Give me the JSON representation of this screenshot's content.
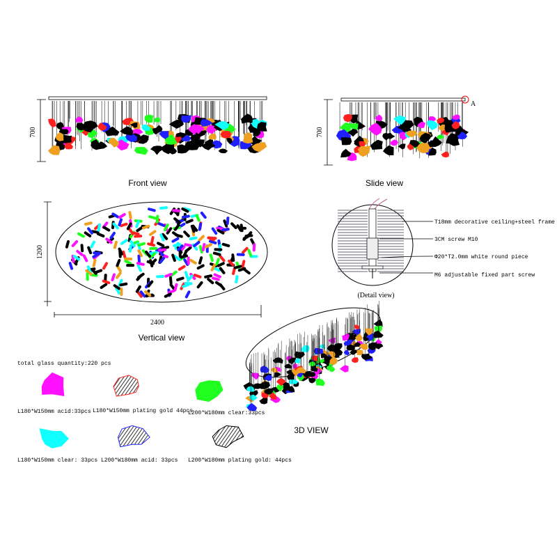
{
  "front_view": {
    "height_label": "700",
    "caption": "Front view"
  },
  "side_view": {
    "height_label": "700",
    "marker": "A",
    "caption": "Slide view"
  },
  "vertical_view": {
    "height_label": "1200",
    "width_label": "2400",
    "caption": "Vertical view"
  },
  "detail_view": {
    "callouts": [
      "T18mm decorative ceiling+steel frame",
      "3CM screw M10",
      "Φ20*T2.0mm white round piece",
      "M6 adjustable fixed part screw"
    ],
    "caption": "(Detail view)"
  },
  "glass": {
    "total": "total glass quantity:220 pcs",
    "items": [
      {
        "label": "L180*W150mm acid:33pcs",
        "color": "#ff10ff"
      },
      {
        "label": "L180*W150mm plating gold 44pcs",
        "color": "#ff2020"
      },
      {
        "label": "L200*W180mm clear:33pcs",
        "color": "#20ff20"
      },
      {
        "label": "L180*W150mm clear: 33pcs",
        "color": "#10ffff"
      },
      {
        "label": "L200*W180mm acid: 33pcs",
        "color": "#2020ff"
      },
      {
        "label": "L200*W180mm plating gold: 44pcs",
        "color": "#000000"
      }
    ]
  },
  "three_d_view": {
    "caption": "3D VIEW"
  }
}
